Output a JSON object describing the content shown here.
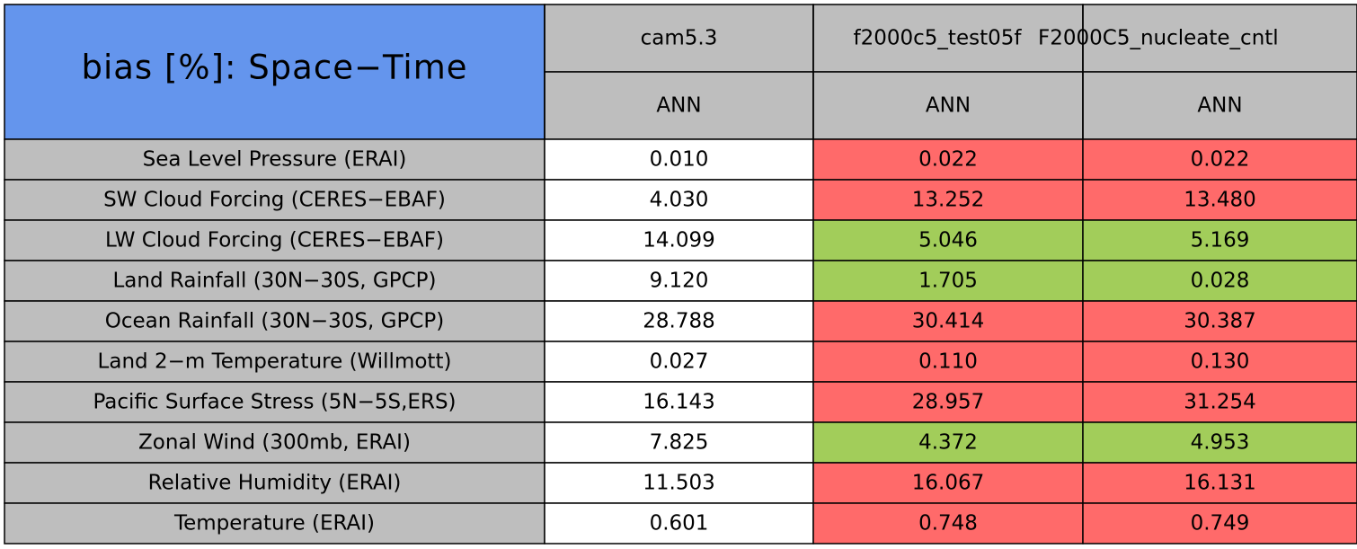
{
  "header": {
    "title": "bias [%]: Space−Time",
    "columns": [
      {
        "name": "cam5.3",
        "season": "ANN"
      },
      {
        "name": "f2000c5_test05f",
        "season": "ANN"
      },
      {
        "name": "F2000C5_nucleate_cntl",
        "season": "ANN"
      }
    ]
  },
  "colors": {
    "title": "#6495ed",
    "header": "#bebebe",
    "label": "#bebebe",
    "neutral": "#ffffff",
    "worse": "#ff6a6a",
    "better": "#a2cd5a"
  },
  "rows": [
    {
      "label": "Sea Level Pressure (ERAI)",
      "values": [
        "0.010",
        "0.022",
        "0.022"
      ],
      "colors": [
        "neutral",
        "worse",
        "worse"
      ]
    },
    {
      "label": "SW Cloud Forcing (CERES−EBAF)",
      "values": [
        "4.030",
        "13.252",
        "13.480"
      ],
      "colors": [
        "neutral",
        "worse",
        "worse"
      ]
    },
    {
      "label": "LW Cloud Forcing (CERES−EBAF)",
      "values": [
        "14.099",
        "5.046",
        "5.169"
      ],
      "colors": [
        "neutral",
        "better",
        "better"
      ]
    },
    {
      "label": "Land Rainfall (30N−30S, GPCP)",
      "values": [
        "9.120",
        "1.705",
        "0.028"
      ],
      "colors": [
        "neutral",
        "better",
        "better"
      ]
    },
    {
      "label": "Ocean Rainfall (30N−30S, GPCP)",
      "values": [
        "28.788",
        "30.414",
        "30.387"
      ],
      "colors": [
        "neutral",
        "worse",
        "worse"
      ]
    },
    {
      "label": "Land 2−m Temperature (Willmott)",
      "values": [
        "0.027",
        "0.110",
        "0.130"
      ],
      "colors": [
        "neutral",
        "worse",
        "worse"
      ]
    },
    {
      "label": "Pacific Surface Stress (5N−5S,ERS)",
      "values": [
        "16.143",
        "28.957",
        "31.254"
      ],
      "colors": [
        "neutral",
        "worse",
        "worse"
      ]
    },
    {
      "label": "Zonal Wind (300mb, ERAI)",
      "values": [
        "7.825",
        "4.372",
        "4.953"
      ],
      "colors": [
        "neutral",
        "better",
        "better"
      ]
    },
    {
      "label": "Relative Humidity (ERAI)",
      "values": [
        "11.503",
        "16.067",
        "16.131"
      ],
      "colors": [
        "neutral",
        "worse",
        "worse"
      ]
    },
    {
      "label": "Temperature (ERAI)",
      "values": [
        "0.601",
        "0.748",
        "0.749"
      ],
      "colors": [
        "neutral",
        "worse",
        "worse"
      ]
    }
  ]
}
